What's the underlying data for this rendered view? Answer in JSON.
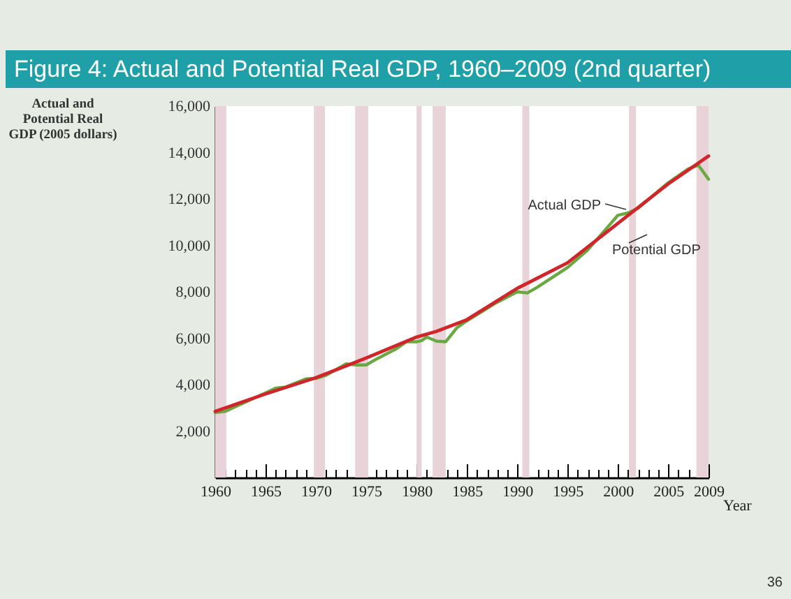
{
  "chart_data": {
    "type": "line",
    "title": "Figure 4: Actual and Potential Real GDP, 1960–2009 (2nd quarter)",
    "xlabel": "Year",
    "ylabel": "Actual and Potential Real GDP (2005 dollars)",
    "series": [
      {
        "name": "Actual GDP",
        "color": "#6aa842",
        "x": [
          1960,
          1961,
          1963,
          1965,
          1966,
          1967,
          1969,
          1970,
          1971,
          1973,
          1974,
          1975,
          1976,
          1978,
          1979,
          1980,
          1980.5,
          1981,
          1982,
          1982.9,
          1984,
          1985,
          1988,
          1990,
          1991,
          1992,
          1995,
          1997,
          1999,
          2000,
          2001,
          2002,
          2005,
          2007,
          2008,
          2009
        ],
        "values": [
          2800,
          2850,
          3250,
          3650,
          3850,
          3900,
          4250,
          4270,
          4400,
          4900,
          4850,
          4850,
          5100,
          5550,
          5850,
          5850,
          5900,
          6050,
          5870,
          5850,
          6450,
          6750,
          7550,
          8000,
          7950,
          8200,
          9050,
          9800,
          10800,
          11300,
          11400,
          11600,
          12700,
          13300,
          13450,
          12850
        ]
      },
      {
        "name": "Potential GDP",
        "color": "#d0262b",
        "x": [
          1960,
          1965,
          1970,
          1975,
          1980,
          1982,
          1985,
          1990,
          1995,
          2000,
          2005,
          2009
        ],
        "values": [
          2850,
          3600,
          4300,
          5150,
          6050,
          6300,
          6800,
          8150,
          9250,
          10950,
          12650,
          13850
        ]
      }
    ],
    "xlim": [
      1960,
      2009
    ],
    "xticks": [
      1960,
      {
        "value": 1961,
        "label": null
      },
      {
        "value": 1962,
        "label": null
      },
      {
        "value": 1963,
        "label": null
      },
      {
        "value": 1964,
        "label": null
      },
      1965,
      {
        "value": 1966,
        "label": null
      },
      {
        "value": 1967,
        "label": null
      },
      {
        "value": 1968,
        "label": null
      },
      {
        "value": 1969,
        "label": null
      },
      1970,
      {
        "value": 1971,
        "label": null
      },
      {
        "value": 1972,
        "label": null
      },
      {
        "value": 1973,
        "label": null
      },
      {
        "value": 1974,
        "label": null
      },
      1975,
      {
        "value": 1976,
        "label": null
      },
      {
        "value": 1977,
        "label": null
      },
      {
        "value": 1978,
        "label": null
      },
      {
        "value": 1979,
        "label": null
      },
      1980,
      {
        "value": 1981,
        "label": null
      },
      {
        "value": 1982,
        "label": null
      },
      {
        "value": 1983,
        "label": null
      },
      {
        "value": 1984,
        "label": null
      },
      1985,
      {
        "value": 1986,
        "label": null
      },
      {
        "value": 1987,
        "label": null
      },
      {
        "value": 1988,
        "label": null
      },
      {
        "value": 1989,
        "label": null
      },
      1990,
      {
        "value": 1991,
        "label": null
      },
      {
        "value": 1992,
        "label": null
      },
      {
        "value": 1993,
        "label": null
      },
      {
        "value": 1994,
        "label": null
      },
      1995,
      {
        "value": 1996,
        "label": null
      },
      {
        "value": 1997,
        "label": null
      },
      {
        "value": 1998,
        "label": null
      },
      {
        "value": 1999,
        "label": null
      },
      2000,
      {
        "value": 2001,
        "label": null
      },
      {
        "value": 2002,
        "label": null
      },
      {
        "value": 2003,
        "label": null
      },
      {
        "value": 2004,
        "label": null
      },
      2005,
      {
        "value": 2006,
        "label": null
      },
      {
        "value": 2007,
        "label": null
      },
      {
        "value": 2008,
        "label": null
      },
      2009
    ],
    "ylim": [
      0,
      16000
    ],
    "yticks": [
      {
        "value": 2000,
        "label": "2,000"
      },
      {
        "value": 4000,
        "label": "4,000"
      },
      {
        "value": 6000,
        "label": "6,000"
      },
      {
        "value": 8000,
        "label": "8,000"
      },
      {
        "value": 10000,
        "label": "10,000"
      },
      {
        "value": 12000,
        "label": "12,000"
      },
      {
        "value": 14000,
        "label": "14,000"
      },
      {
        "value": 16000,
        "label": "16,000"
      }
    ],
    "bands": [
      {
        "axis": "x",
        "from": 1960,
        "to": 1961.1,
        "label": null,
        "color": "#e8d3d8"
      },
      {
        "axis": "x",
        "from": 1969.8,
        "to": 1970.9,
        "label": null,
        "color": "#e8d3d8"
      },
      {
        "axis": "x",
        "from": 1973.9,
        "to": 1975.2,
        "label": null,
        "color": "#e8d3d8"
      },
      {
        "axis": "x",
        "from": 1980,
        "to": 1980.5,
        "label": null,
        "color": "#e8d3d8"
      },
      {
        "axis": "x",
        "from": 1981.6,
        "to": 1982.9,
        "label": null,
        "color": "#e8d3d8"
      },
      {
        "axis": "x",
        "from": 1990.5,
        "to": 1991.2,
        "label": null,
        "color": "#e8d3d8"
      },
      {
        "axis": "x",
        "from": 2001.1,
        "to": 2001.8,
        "label": null,
        "color": "#e8d3d8"
      },
      {
        "axis": "x",
        "from": 2007.8,
        "to": 2009,
        "label": null,
        "color": "#e8d3d8"
      }
    ],
    "annotations": [
      "36"
    ],
    "grid": false,
    "marker": "none",
    "line_style": "solid"
  }
}
